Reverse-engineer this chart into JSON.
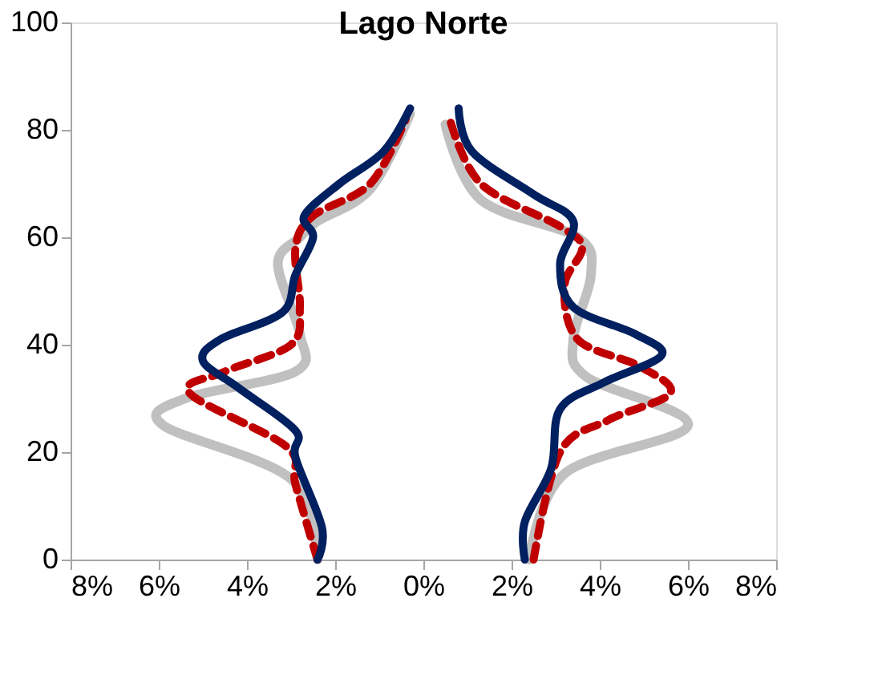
{
  "chart_data": {
    "type": "line",
    "title": "Lago Norte",
    "xlim": [
      -8,
      8
    ],
    "ylim": [
      0,
      100
    ],
    "xticks": [
      {
        "value": -8,
        "label": "8%"
      },
      {
        "value": -6,
        "label": "6%"
      },
      {
        "value": -4,
        "label": "4%"
      },
      {
        "value": -2,
        "label": "2%"
      },
      {
        "value": 0,
        "label": "0%"
      },
      {
        "value": 2,
        "label": "2%"
      },
      {
        "value": 4,
        "label": "4%"
      },
      {
        "value": 6,
        "label": "6%"
      },
      {
        "value": 8,
        "label": "8%"
      }
    ],
    "yticks": [
      0,
      20,
      40,
      60,
      80,
      100
    ],
    "grid": false,
    "marker": "none",
    "series": [
      {
        "color": "#c0c0c0",
        "line_style": "solid",
        "x": [
          -2.4,
          -3.0,
          -5.9,
          -5.4,
          -2.9,
          -2.8,
          -3.3,
          -2.8,
          -2.4,
          -1.2,
          -0.3
        ],
        "values": [
          0,
          15,
          25,
          30,
          35,
          42,
          55,
          60,
          63,
          69,
          83
        ]
      },
      {
        "color": "#c0c0c0",
        "line_style": "solid",
        "x": [
          2.4,
          3.2,
          6.0,
          3.7,
          3.4,
          3.8,
          3.5,
          1.3,
          0.5
        ],
        "values": [
          0,
          16,
          25,
          34,
          41,
          53,
          60,
          67,
          81
        ]
      },
      {
        "color": "#c00000",
        "line_style": "dashed",
        "x": [
          -2.4,
          -2.9,
          -3.1,
          -5.3,
          -4.5,
          -3.0,
          -2.8,
          -2.9,
          -2.5,
          -1.2,
          -0.4
        ],
        "values": [
          0,
          14,
          21,
          31,
          35,
          40,
          47,
          58,
          64,
          70,
          82
        ]
      },
      {
        "color": "#c00000",
        "line_style": "dashed",
        "x": [
          2.5,
          3.1,
          4.2,
          5.6,
          4.9,
          3.5,
          3.2,
          3.6,
          3.1,
          1.3,
          0.6
        ],
        "values": [
          0,
          20,
          26,
          31,
          36,
          41,
          51,
          58,
          62,
          70,
          82
        ]
      },
      {
        "color": "#002060",
        "line_style": "solid",
        "x": [
          -2.4,
          -2.3,
          -2.9,
          -2.9,
          -4.2,
          -5.0,
          -4.6,
          -3.2,
          -2.9,
          -2.5,
          -2.7,
          -1.9,
          -0.9,
          -0.3
        ],
        "values": [
          0,
          6,
          19,
          24,
          32,
          37,
          41,
          46,
          53,
          60,
          64,
          70,
          76,
          84
        ]
      },
      {
        "color": "#002060",
        "line_style": "solid",
        "x": [
          2.3,
          2.3,
          2.9,
          3.1,
          4.1,
          5.4,
          4.8,
          3.4,
          3.1,
          3.4,
          2.5,
          1.1,
          0.8
        ],
        "values": [
          0,
          7,
          17,
          28,
          33,
          38,
          42,
          47,
          55,
          63,
          68,
          76,
          84
        ]
      }
    ]
  }
}
